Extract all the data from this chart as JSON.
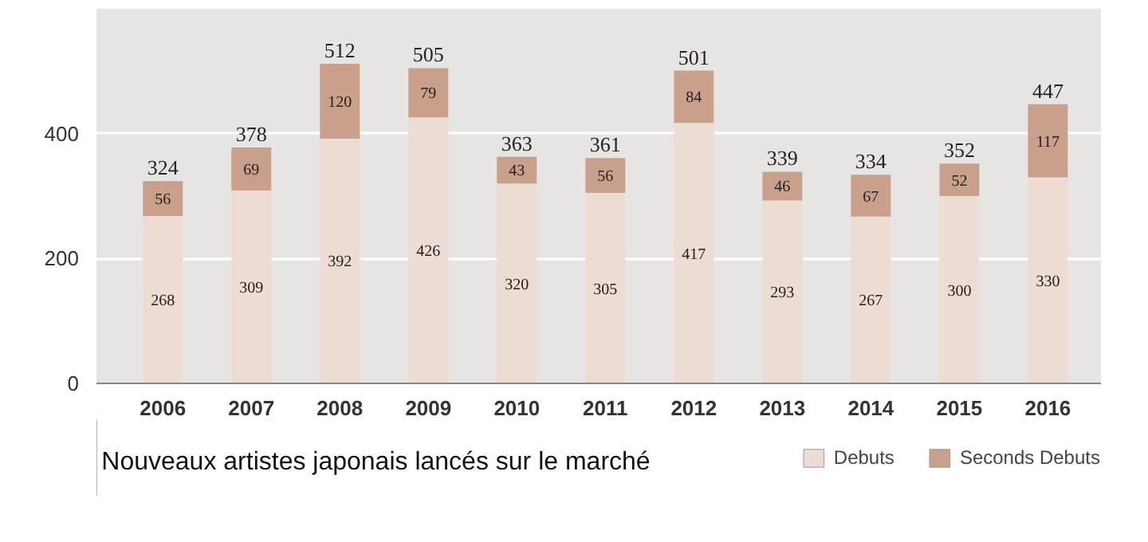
{
  "chart_data": {
    "type": "bar",
    "stacked": true,
    "title": "Nouveaux artistes japonais lancés sur le marché",
    "categories": [
      "2006",
      "2007",
      "2008",
      "2009",
      "2010",
      "2011",
      "2012",
      "2013",
      "2014",
      "2015",
      "2016"
    ],
    "series": [
      {
        "name": "Debuts",
        "color": "#eddcd3",
        "values": [
          268,
          309,
          392,
          426,
          320,
          305,
          417,
          293,
          267,
          300,
          330
        ]
      },
      {
        "name": "Seconds Debuts",
        "color": "#c9a08b",
        "values": [
          56,
          69,
          120,
          79,
          43,
          56,
          84,
          46,
          67,
          52,
          117
        ]
      }
    ],
    "totals": [
      "324",
      "378",
      "512",
      "505",
      "363",
      "361",
      "501",
      "339",
      "334",
      "352",
      "447"
    ],
    "data_labels": true,
    "ylim": [
      0,
      600
    ],
    "yticks": [
      0,
      200,
      400
    ],
    "grid": "y",
    "legend": "bottom right"
  }
}
